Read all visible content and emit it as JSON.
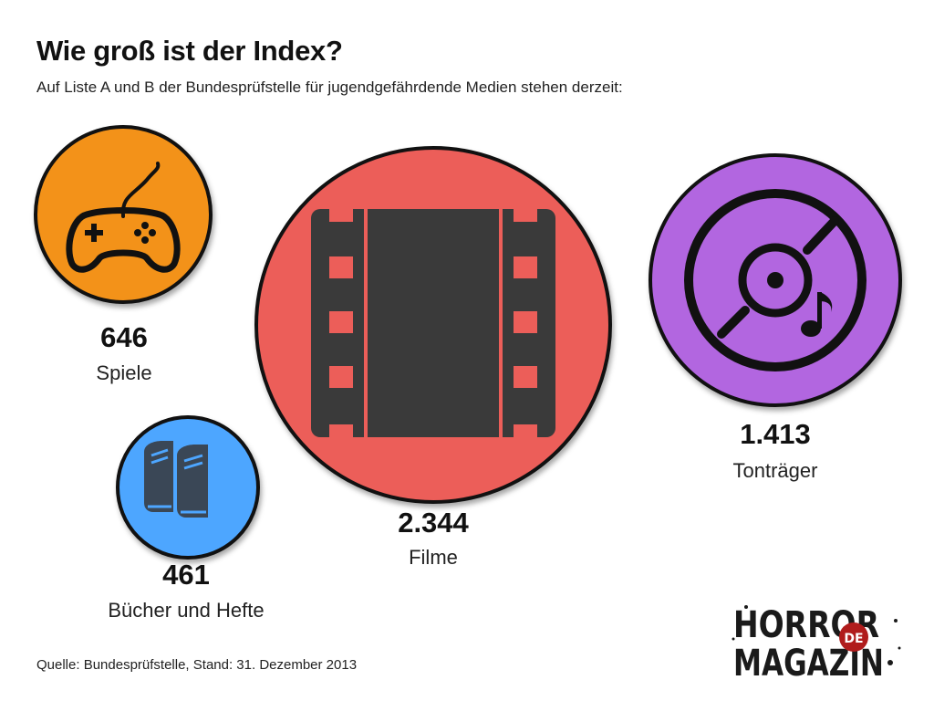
{
  "title": "Wie groß ist der Index?",
  "subtitle": "Auf Liste A und B der Bundesprüfstelle für jugendgefährdende Medien stehen derzeit:",
  "source": "Quelle: Bundesprüfstelle, Stand: 31. Dezember 2013",
  "logo": {
    "line1": "HORROR",
    "line2": "MAGAZIN",
    "badge": "DE"
  },
  "items": [
    {
      "value": "646",
      "label": "Spiele",
      "color": "#f39219",
      "icon": "gamepad-icon"
    },
    {
      "value": "461",
      "label": "Bücher und Hefte",
      "color": "#4da6ff",
      "icon": "books-icon"
    },
    {
      "value": "2.344",
      "label": "Filme",
      "color": "#ec5e59",
      "icon": "film-icon"
    },
    {
      "value": "1.413",
      "label": "Tonträger",
      "color": "#b266e0",
      "icon": "music-disc-icon"
    }
  ],
  "chart_data": {
    "type": "bubble",
    "categories": [
      "Spiele",
      "Bücher und Hefte",
      "Filme",
      "Tonträger"
    ],
    "values": [
      646,
      461,
      2344,
      1413
    ],
    "title": "Wie groß ist der Index?",
    "subtitle": "Auf Liste A und B der Bundesprüfstelle für jugendgefährdende Medien stehen derzeit:"
  }
}
